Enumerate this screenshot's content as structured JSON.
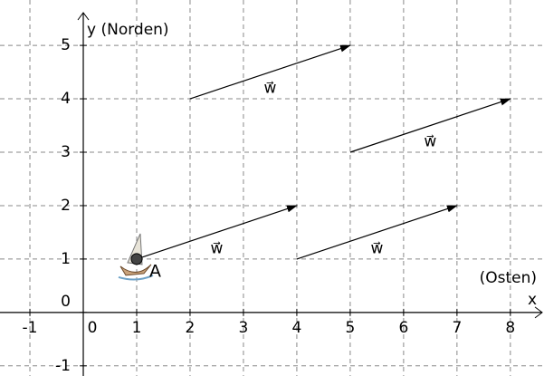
{
  "chart_data": {
    "type": "vector",
    "y_label": "y (Norden)",
    "x_label": "x",
    "x_annotation": "(Osten)",
    "xlim": [
      -1.56,
      8.63
    ],
    "ylim": [
      -1.19,
      5.85
    ],
    "xticks": [
      -1,
      0,
      1,
      2,
      3,
      4,
      5,
      6,
      7,
      8
    ],
    "yticks": [
      -1,
      0,
      1,
      2,
      3,
      4,
      5
    ],
    "grid": true,
    "vectors": [
      {
        "label": "w⃗",
        "start": [
          2,
          4
        ],
        "end": [
          5,
          5
        ]
      },
      {
        "label": "w⃗",
        "start": [
          5,
          3
        ],
        "end": [
          8,
          4
        ]
      },
      {
        "label": "w⃗",
        "start": [
          1,
          1
        ],
        "end": [
          4,
          2
        ]
      },
      {
        "label": "w⃗",
        "start": [
          4,
          1
        ],
        "end": [
          7,
          2
        ]
      }
    ],
    "point": {
      "label": "A",
      "x": 1,
      "y": 1
    }
  }
}
